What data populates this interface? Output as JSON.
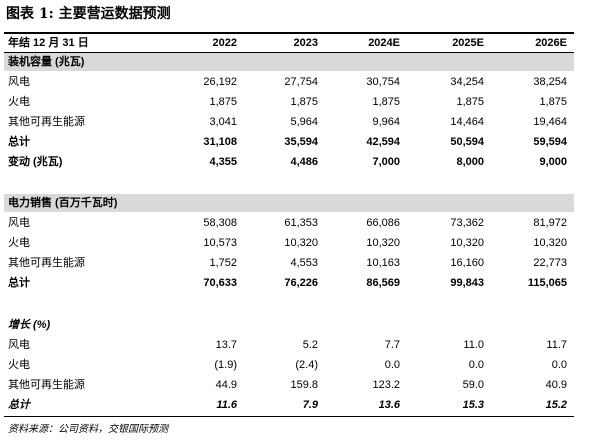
{
  "header": {
    "title": "图表 1: 主要营运数据预测"
  },
  "table": {
    "columns": [
      "年结 12 月 31 日",
      "2022",
      "2023",
      "2024E",
      "2025E",
      "2026E"
    ],
    "sections": [
      {
        "title": "装机容量 (兆瓦)",
        "rows": [
          [
            "风电",
            "26,192",
            "27,754",
            "30,754",
            "34,254",
            "38,254"
          ],
          [
            "火电",
            "1,875",
            "1,875",
            "1,875",
            "1,875",
            "1,875"
          ],
          [
            "其他可再生能源",
            "3,041",
            "5,964",
            "9,964",
            "14,464",
            "19,464"
          ],
          [
            "总计",
            "31,108",
            "35,594",
            "42,594",
            "50,594",
            "59,594"
          ],
          [
            "变动 (兆瓦)",
            "4,355",
            "4,486",
            "7,000",
            "8,000",
            "9,000"
          ]
        ]
      },
      {
        "title": "电力销售 (百万千瓦时)",
        "rows": [
          [
            "风电",
            "58,308",
            "61,353",
            "66,086",
            "73,362",
            "81,972"
          ],
          [
            "火电",
            "10,573",
            "10,320",
            "10,320",
            "10,320",
            "10,320"
          ],
          [
            "其他可再生能源",
            "1,752",
            "4,553",
            "10,163",
            "16,160",
            "22,773"
          ],
          [
            "总计",
            "70,633",
            "76,226",
            "86,569",
            "99,843",
            "115,065"
          ]
        ]
      },
      {
        "title": "增长 (%)",
        "rows": [
          [
            "风电",
            "13.7",
            "5.2",
            "7.7",
            "11.0",
            "11.7"
          ],
          [
            "火电",
            "(1.9)",
            "(2.4)",
            "0.0",
            "0.0",
            "0.0"
          ],
          [
            "其他可再生能源",
            "44.9",
            "159.8",
            "123.2",
            "59.0",
            "40.9"
          ],
          [
            "总计",
            "11.6",
            "7.9",
            "13.6",
            "15.3",
            "15.2"
          ]
        ]
      }
    ]
  },
  "footer": {
    "source": "资料来源：公司资料，交银国际预测"
  }
}
